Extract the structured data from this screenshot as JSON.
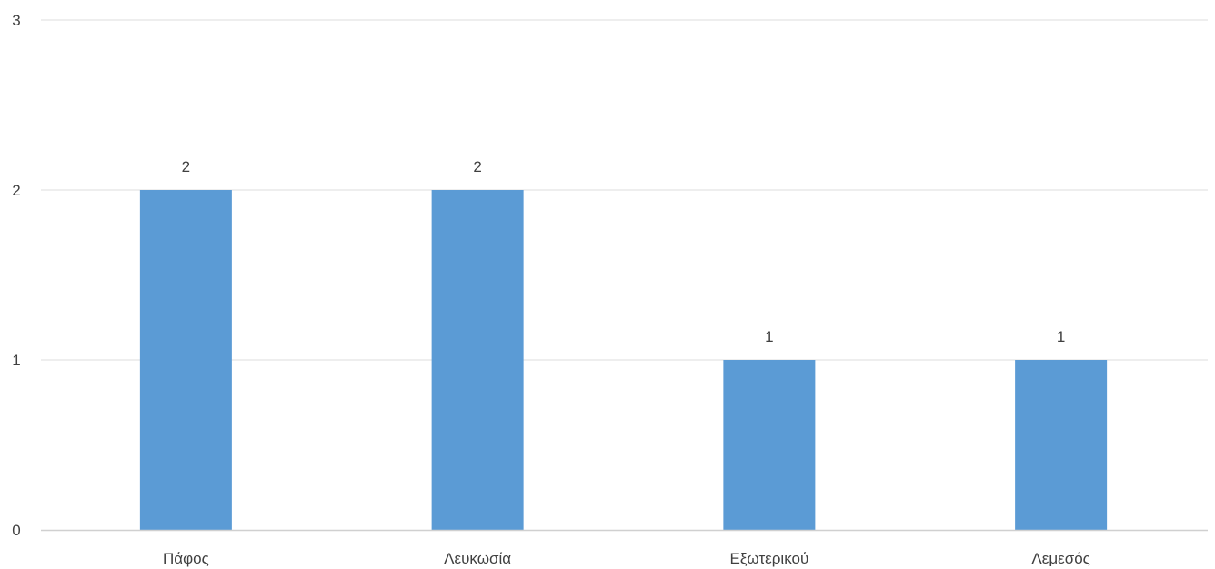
{
  "chart_data": {
    "type": "bar",
    "categories": [
      "Πάφος",
      "Λευκωσία",
      "Εξωτερικού",
      "Λεμεσός"
    ],
    "values": [
      2,
      2,
      1,
      1
    ],
    "data_labels": [
      "2",
      "2",
      "1",
      "1"
    ],
    "yticks": [
      "0",
      "1",
      "2",
      "3"
    ],
    "ylim": [
      0,
      3
    ],
    "grid": true,
    "legend": "none",
    "colors": {
      "bar": "#5b9bd5",
      "grid": "#e8e8e8",
      "axis": "#d0d0d0",
      "text": "#404040"
    }
  }
}
